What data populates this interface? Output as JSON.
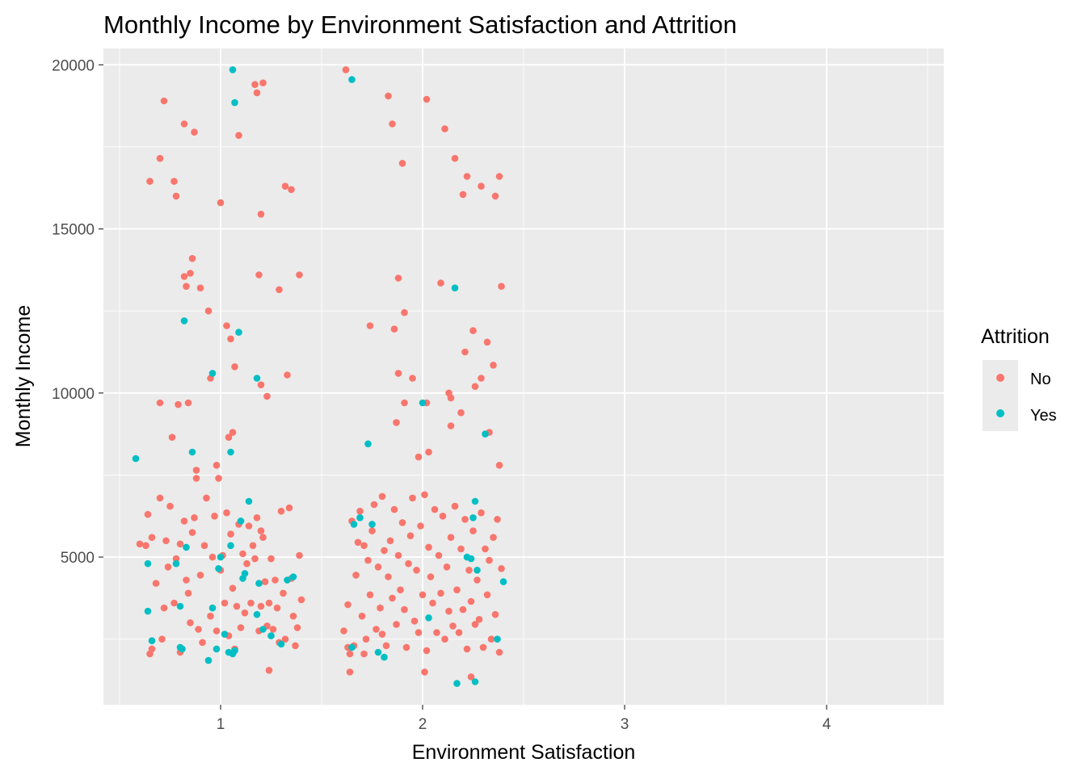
{
  "chart_data": {
    "type": "scatter",
    "title": "Monthly Income by Environment Satisfaction and Attrition",
    "xlabel": "Environment Satisfaction",
    "ylabel": "Monthly Income",
    "x_ticks": [
      "1",
      "2",
      "3",
      "4"
    ],
    "y_ticks": [
      "5000",
      "10000",
      "15000",
      "20000"
    ],
    "xlim": [
      0.42,
      4.58
    ],
    "ylim": [
      500,
      20500
    ],
    "grid": true,
    "legend": {
      "title": "Attrition",
      "position": "right"
    },
    "series": [
      {
        "name": "No",
        "color": "#F8766D",
        "points": [
          [
            0.65,
            16450
          ],
          [
            0.7,
            17150
          ],
          [
            0.72,
            18900
          ],
          [
            0.77,
            16450
          ],
          [
            0.78,
            16000
          ],
          [
            0.82,
            18200
          ],
          [
            0.87,
            17950
          ],
          [
            1.0,
            15800
          ],
          [
            1.09,
            17850
          ],
          [
            1.17,
            19400
          ],
          [
            1.21,
            19450
          ],
          [
            1.18,
            19150
          ],
          [
            1.2,
            15450
          ],
          [
            1.32,
            16300
          ],
          [
            1.35,
            16200
          ],
          [
            0.82,
            13550
          ],
          [
            0.83,
            13250
          ],
          [
            0.86,
            14100
          ],
          [
            0.85,
            13650
          ],
          [
            0.9,
            13200
          ],
          [
            0.94,
            12500
          ],
          [
            0.95,
            10450
          ],
          [
            1.03,
            12050
          ],
          [
            1.05,
            11650
          ],
          [
            1.07,
            10800
          ],
          [
            1.19,
            13600
          ],
          [
            1.2,
            10250
          ],
          [
            1.23,
            9900
          ],
          [
            1.29,
            13150
          ],
          [
            1.33,
            10550
          ],
          [
            1.39,
            13600
          ],
          [
            0.7,
            9700
          ],
          [
            0.76,
            8650
          ],
          [
            0.79,
            9650
          ],
          [
            0.84,
            9700
          ],
          [
            0.88,
            7650
          ],
          [
            0.98,
            7800
          ],
          [
            1.06,
            8800
          ],
          [
            1.04,
            8650
          ],
          [
            0.6,
            5400
          ],
          [
            0.63,
            5350
          ],
          [
            0.64,
            6300
          ],
          [
            0.66,
            5600
          ],
          [
            0.68,
            4200
          ],
          [
            0.7,
            6800
          ],
          [
            0.72,
            3450
          ],
          [
            0.66,
            2200
          ],
          [
            0.65,
            2050
          ],
          [
            0.71,
            2500
          ],
          [
            0.73,
            5500
          ],
          [
            0.74,
            4700
          ],
          [
            0.75,
            6550
          ],
          [
            0.77,
            3600
          ],
          [
            0.78,
            4950
          ],
          [
            0.8,
            5400
          ],
          [
            0.8,
            2100
          ],
          [
            0.82,
            6100
          ],
          [
            0.83,
            4300
          ],
          [
            0.84,
            3900
          ],
          [
            0.85,
            3000
          ],
          [
            0.86,
            5750
          ],
          [
            0.87,
            6200
          ],
          [
            0.88,
            7400
          ],
          [
            0.89,
            2800
          ],
          [
            0.9,
            4450
          ],
          [
            0.91,
            2400
          ],
          [
            0.92,
            5350
          ],
          [
            0.93,
            6800
          ],
          [
            0.95,
            3200
          ],
          [
            0.96,
            5000
          ],
          [
            0.97,
            6250
          ],
          [
            0.98,
            2750
          ],
          [
            0.99,
            7400
          ],
          [
            1.0,
            4600
          ],
          [
            1.01,
            5050
          ],
          [
            1.02,
            3600
          ],
          [
            1.03,
            6350
          ],
          [
            1.04,
            2600
          ],
          [
            1.05,
            5700
          ],
          [
            1.06,
            4050
          ],
          [
            1.07,
            2200
          ],
          [
            1.08,
            3500
          ],
          [
            1.09,
            6000
          ],
          [
            1.1,
            2850
          ],
          [
            1.11,
            5100
          ],
          [
            1.12,
            3300
          ],
          [
            1.13,
            4800
          ],
          [
            1.14,
            5950
          ],
          [
            1.15,
            3600
          ],
          [
            1.16,
            5350
          ],
          [
            1.17,
            4950
          ],
          [
            1.18,
            6200
          ],
          [
            1.19,
            2750
          ],
          [
            1.2,
            3500
          ],
          [
            1.21,
            5600
          ],
          [
            1.22,
            4250
          ],
          [
            1.23,
            2900
          ],
          [
            1.24,
            3600
          ],
          [
            1.25,
            4950
          ],
          [
            1.26,
            2800
          ],
          [
            1.27,
            4300
          ],
          [
            1.28,
            3450
          ],
          [
            1.29,
            2400
          ],
          [
            1.3,
            6400
          ],
          [
            1.31,
            3900
          ],
          [
            1.32,
            2500
          ],
          [
            1.34,
            6500
          ],
          [
            1.35,
            4350
          ],
          [
            1.36,
            3200
          ],
          [
            1.37,
            2300
          ],
          [
            1.38,
            2850
          ],
          [
            1.39,
            5050
          ],
          [
            1.4,
            3700
          ],
          [
            1.24,
            1550
          ],
          [
            1.2,
            5800
          ],
          [
            1.62,
            19850
          ],
          [
            1.83,
            19050
          ],
          [
            1.85,
            18200
          ],
          [
            1.9,
            17000
          ],
          [
            2.02,
            18950
          ],
          [
            2.11,
            18050
          ],
          [
            2.16,
            17150
          ],
          [
            2.2,
            16050
          ],
          [
            2.22,
            16600
          ],
          [
            2.29,
            16300
          ],
          [
            2.36,
            16000
          ],
          [
            2.38,
            16600
          ],
          [
            1.74,
            12050
          ],
          [
            1.86,
            11950
          ],
          [
            1.88,
            13500
          ],
          [
            1.91,
            12450
          ],
          [
            1.88,
            10600
          ],
          [
            1.95,
            10450
          ],
          [
            2.09,
            13350
          ],
          [
            2.14,
            9850
          ],
          [
            2.21,
            11250
          ],
          [
            2.25,
            11900
          ],
          [
            2.26,
            10200
          ],
          [
            2.29,
            10450
          ],
          [
            2.32,
            11550
          ],
          [
            2.35,
            10850
          ],
          [
            2.39,
            13250
          ],
          [
            1.87,
            9100
          ],
          [
            1.91,
            9700
          ],
          [
            1.98,
            8050
          ],
          [
            2.02,
            9700
          ],
          [
            2.03,
            8200
          ],
          [
            2.13,
            10000
          ],
          [
            2.14,
            9000
          ],
          [
            2.19,
            9400
          ],
          [
            2.33,
            8800
          ],
          [
            2.38,
            7800
          ],
          [
            1.61,
            2750
          ],
          [
            1.63,
            3550
          ],
          [
            1.64,
            2050
          ],
          [
            1.65,
            6100
          ],
          [
            1.66,
            2300
          ],
          [
            1.67,
            4450
          ],
          [
            1.68,
            5450
          ],
          [
            1.69,
            6400
          ],
          [
            1.7,
            3200
          ],
          [
            1.71,
            5350
          ],
          [
            1.72,
            2500
          ],
          [
            1.73,
            4900
          ],
          [
            1.74,
            3850
          ],
          [
            1.75,
            5800
          ],
          [
            1.76,
            6600
          ],
          [
            1.77,
            2800
          ],
          [
            1.78,
            4700
          ],
          [
            1.79,
            3450
          ],
          [
            1.8,
            6850
          ],
          [
            1.81,
            5200
          ],
          [
            1.82,
            2300
          ],
          [
            1.83,
            4400
          ],
          [
            1.84,
            5500
          ],
          [
            1.85,
            3750
          ],
          [
            1.86,
            6450
          ],
          [
            1.87,
            2950
          ],
          [
            1.88,
            5050
          ],
          [
            1.89,
            4000
          ],
          [
            1.9,
            6050
          ],
          [
            1.91,
            3400
          ],
          [
            1.92,
            2250
          ],
          [
            1.93,
            4800
          ],
          [
            1.94,
            5650
          ],
          [
            1.95,
            6800
          ],
          [
            1.96,
            3050
          ],
          [
            1.97,
            4600
          ],
          [
            1.98,
            2700
          ],
          [
            1.99,
            5950
          ],
          [
            2.0,
            3850
          ],
          [
            2.01,
            6900
          ],
          [
            2.02,
            2150
          ],
          [
            2.03,
            5300
          ],
          [
            2.04,
            4400
          ],
          [
            2.05,
            3600
          ],
          [
            2.06,
            6450
          ],
          [
            2.07,
            2700
          ],
          [
            2.08,
            5050
          ],
          [
            2.09,
            3900
          ],
          [
            2.1,
            6250
          ],
          [
            2.11,
            2500
          ],
          [
            2.12,
            4700
          ],
          [
            2.13,
            3350
          ],
          [
            2.14,
            5600
          ],
          [
            2.15,
            2900
          ],
          [
            2.16,
            6550
          ],
          [
            2.17,
            4000
          ],
          [
            2.18,
            2700
          ],
          [
            2.19,
            5250
          ],
          [
            2.2,
            3400
          ],
          [
            2.21,
            6150
          ],
          [
            2.22,
            2200
          ],
          [
            2.23,
            4600
          ],
          [
            2.24,
            3650
          ],
          [
            2.25,
            5800
          ],
          [
            2.26,
            2950
          ],
          [
            2.27,
            4300
          ],
          [
            2.28,
            3100
          ],
          [
            2.29,
            6350
          ],
          [
            2.3,
            2250
          ],
          [
            2.31,
            5250
          ],
          [
            2.32,
            3850
          ],
          [
            2.33,
            4900
          ],
          [
            2.34,
            2500
          ],
          [
            2.35,
            5600
          ],
          [
            2.36,
            3250
          ],
          [
            2.37,
            6150
          ],
          [
            2.38,
            2100
          ],
          [
            2.39,
            4650
          ],
          [
            1.64,
            1500
          ],
          [
            1.63,
            2250
          ],
          [
            2.01,
            1500
          ],
          [
            1.8,
            2650
          ],
          [
            2.24,
            1350
          ],
          [
            1.71,
            2050
          ]
        ]
      },
      {
        "name": "Yes",
        "color": "#00BFC4",
        "points": [
          [
            1.06,
            19850
          ],
          [
            1.07,
            18850
          ],
          [
            0.82,
            12200
          ],
          [
            0.96,
            10600
          ],
          [
            1.09,
            11850
          ],
          [
            1.18,
            10450
          ],
          [
            0.58,
            8000
          ],
          [
            0.86,
            8200
          ],
          [
            1.05,
            8200
          ],
          [
            0.64,
            4800
          ],
          [
            0.64,
            3350
          ],
          [
            0.66,
            2450
          ],
          [
            0.78,
            4800
          ],
          [
            0.8,
            3500
          ],
          [
            0.83,
            5300
          ],
          [
            0.8,
            2250
          ],
          [
            0.94,
            1850
          ],
          [
            0.96,
            3450
          ],
          [
            0.98,
            2200
          ],
          [
            0.99,
            4650
          ],
          [
            1.0,
            5000
          ],
          [
            1.02,
            2650
          ],
          [
            1.04,
            2100
          ],
          [
            1.06,
            2050
          ],
          [
            1.07,
            2150
          ],
          [
            1.05,
            5350
          ],
          [
            1.1,
            6100
          ],
          [
            1.11,
            4350
          ],
          [
            1.12,
            4500
          ],
          [
            1.14,
            6700
          ],
          [
            1.18,
            3250
          ],
          [
            1.19,
            4200
          ],
          [
            1.21,
            2800
          ],
          [
            1.25,
            2600
          ],
          [
            1.3,
            2350
          ],
          [
            1.33,
            4300
          ],
          [
            1.36,
            4400
          ],
          [
            0.81,
            2200
          ],
          [
            1.65,
            19550
          ],
          [
            1.73,
            8450
          ],
          [
            1.66,
            6000
          ],
          [
            1.69,
            6200
          ],
          [
            1.75,
            6000
          ],
          [
            1.65,
            2250
          ],
          [
            1.78,
            2100
          ],
          [
            1.81,
            1950
          ],
          [
            2.0,
            9700
          ],
          [
            2.03,
            3150
          ],
          [
            2.16,
            13200
          ],
          [
            2.22,
            5000
          ],
          [
            2.24,
            4950
          ],
          [
            2.25,
            6200
          ],
          [
            2.26,
            6700
          ],
          [
            2.31,
            8750
          ],
          [
            2.27,
            4600
          ],
          [
            2.37,
            2500
          ],
          [
            2.17,
            1150
          ],
          [
            2.26,
            1200
          ],
          [
            2.4,
            4250
          ]
        ]
      }
    ]
  }
}
